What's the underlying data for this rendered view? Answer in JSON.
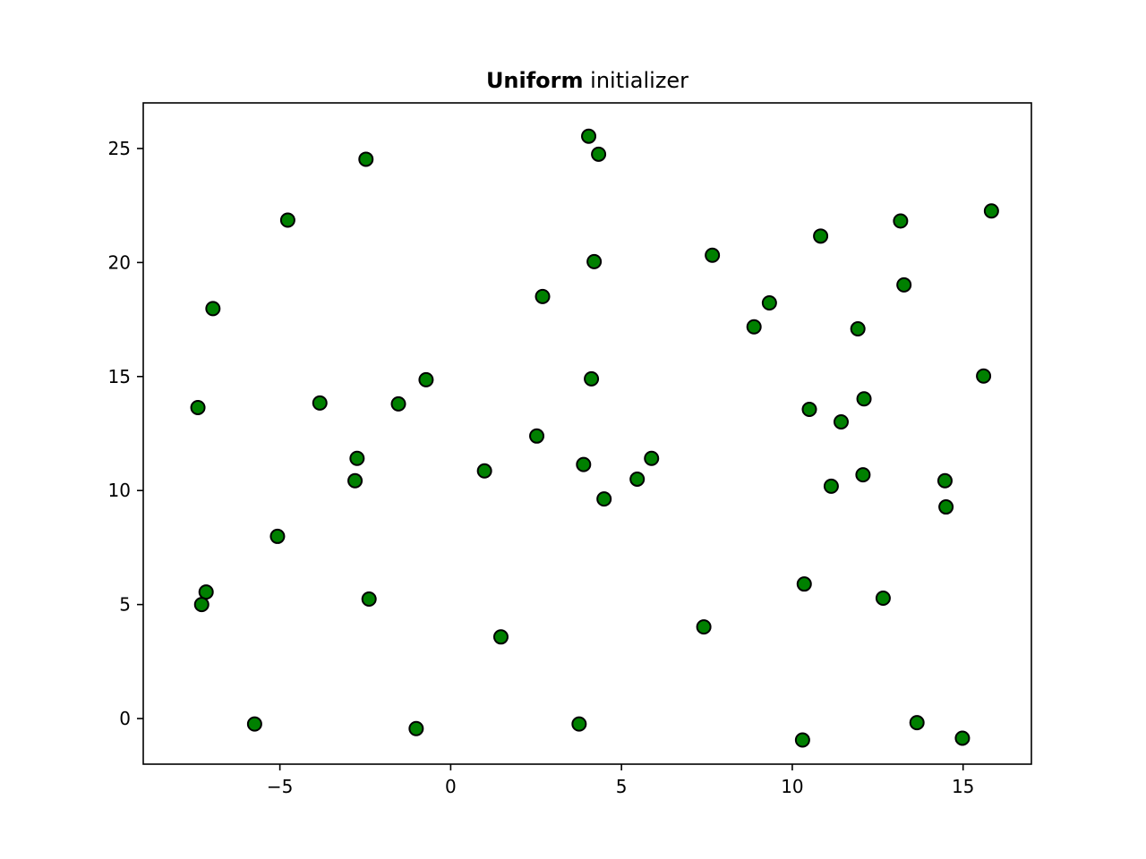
{
  "chart_data": {
    "type": "scatter",
    "title_bold": "Uniform",
    "title_rest": " initializer",
    "xlabel": "",
    "ylabel": "",
    "xlim": [
      -9.0,
      17.0
    ],
    "ylim": [
      -2.0,
      27.0
    ],
    "x_ticks": [
      {
        "value": -5,
        "label": "−5"
      },
      {
        "value": 0,
        "label": "0"
      },
      {
        "value": 5,
        "label": "5"
      },
      {
        "value": 10,
        "label": "10"
      },
      {
        "value": 15,
        "label": "15"
      }
    ],
    "y_ticks": [
      {
        "value": 0,
        "label": "0"
      },
      {
        "value": 5,
        "label": "5"
      },
      {
        "value": 10,
        "label": "10"
      },
      {
        "value": 15,
        "label": "15"
      },
      {
        "value": 20,
        "label": "20"
      },
      {
        "value": 25,
        "label": "25"
      }
    ],
    "grid": false,
    "marker_fill": "#008000",
    "marker_edge": "#000000",
    "points": [
      {
        "x": 4.04,
        "y": 25.54
      },
      {
        "x": 4.33,
        "y": 24.75
      },
      {
        "x": -2.48,
        "y": 24.53
      },
      {
        "x": -4.77,
        "y": 21.86
      },
      {
        "x": 15.83,
        "y": 22.26
      },
      {
        "x": 13.17,
        "y": 21.82
      },
      {
        "x": 10.83,
        "y": 21.16
      },
      {
        "x": 7.66,
        "y": 20.32
      },
      {
        "x": 4.2,
        "y": 20.04
      },
      {
        "x": 13.27,
        "y": 19.02
      },
      {
        "x": 2.69,
        "y": 18.51
      },
      {
        "x": 9.33,
        "y": 18.23
      },
      {
        "x": -6.96,
        "y": 17.98
      },
      {
        "x": 8.88,
        "y": 17.18
      },
      {
        "x": 11.92,
        "y": 17.09
      },
      {
        "x": 15.6,
        "y": 15.02
      },
      {
        "x": -0.72,
        "y": 14.86
      },
      {
        "x": 4.12,
        "y": 14.9
      },
      {
        "x": 12.1,
        "y": 14.02
      },
      {
        "x": -3.83,
        "y": 13.84
      },
      {
        "x": -1.53,
        "y": 13.8
      },
      {
        "x": -7.4,
        "y": 13.64
      },
      {
        "x": 10.5,
        "y": 13.56
      },
      {
        "x": 11.43,
        "y": 13.01
      },
      {
        "x": 2.52,
        "y": 12.39
      },
      {
        "x": -2.74,
        "y": 11.41
      },
      {
        "x": 5.88,
        "y": 11.41
      },
      {
        "x": 3.89,
        "y": 11.14
      },
      {
        "x": 0.99,
        "y": 10.86
      },
      {
        "x": 12.07,
        "y": 10.69
      },
      {
        "x": 5.46,
        "y": 10.5
      },
      {
        "x": 14.47,
        "y": 10.43
      },
      {
        "x": -2.8,
        "y": 10.43
      },
      {
        "x": 11.14,
        "y": 10.19
      },
      {
        "x": 4.49,
        "y": 9.63
      },
      {
        "x": 14.5,
        "y": 9.28
      },
      {
        "x": -5.07,
        "y": 7.99
      },
      {
        "x": 10.35,
        "y": 5.9
      },
      {
        "x": -7.16,
        "y": 5.55
      },
      {
        "x": -2.39,
        "y": 5.24
      },
      {
        "x": 12.66,
        "y": 5.28
      },
      {
        "x": -7.29,
        "y": 5.0
      },
      {
        "x": 7.41,
        "y": 4.02
      },
      {
        "x": 1.47,
        "y": 3.58
      },
      {
        "x": -5.74,
        "y": -0.24
      },
      {
        "x": 3.76,
        "y": -0.24
      },
      {
        "x": 13.65,
        "y": -0.18
      },
      {
        "x": -1.01,
        "y": -0.44
      },
      {
        "x": 14.98,
        "y": -0.86
      },
      {
        "x": 10.3,
        "y": -0.94
      }
    ]
  }
}
